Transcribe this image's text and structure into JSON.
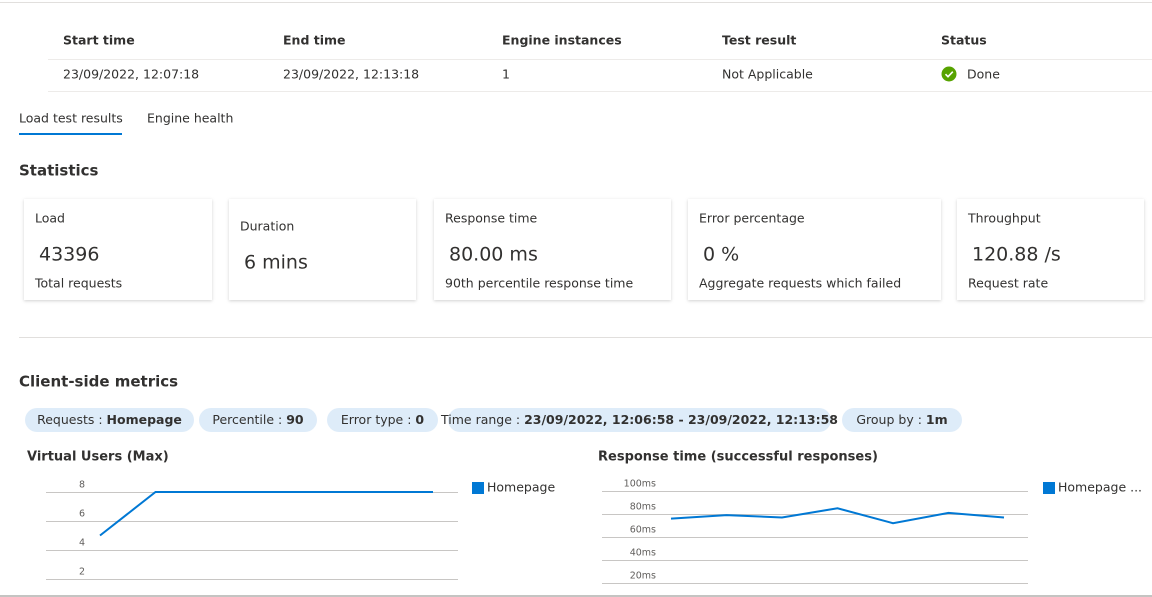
{
  "table": {
    "headers": [
      "Start time",
      "End time",
      "Engine instances",
      "Test result",
      "Status"
    ],
    "row": [
      "23/09/2022, 12:07:18",
      "23/09/2022, 12:13:18",
      "1",
      "Not Applicable",
      "Done"
    ]
  },
  "tabs": [
    "Load test results",
    "Engine health"
  ],
  "statistics": {
    "title": "Statistics",
    "cards": [
      {
        "title": "Load",
        "value": "43396",
        "caption": "Total requests"
      },
      {
        "title": "Duration",
        "value": "6 mins"
      },
      {
        "title": "Response time",
        "value": "80.00 ms",
        "caption": "90th percentile response time"
      },
      {
        "title": "Error percentage",
        "value": "0 %",
        "caption": "Aggregate requests which failed"
      },
      {
        "title": "Throughput",
        "value": "120.88 /s",
        "caption": "Request rate"
      }
    ]
  },
  "metrics": {
    "title": "Client-side metrics",
    "filters": [
      {
        "label": "Requests : ",
        "value": "Homepage"
      },
      {
        "label": "Percentile : ",
        "value": "90"
      },
      {
        "label": "Error type : ",
        "value": "0"
      },
      {
        "label": "Time range : ",
        "value": "23/09/2022, 12:06:58 - 23/09/2022, 12:13:58"
      },
      {
        "label": "Group by : ",
        "value": "1m"
      }
    ]
  },
  "chart_data": [
    {
      "type": "line",
      "title": "Virtual Users (Max)",
      "categories": [
        null,
        null,
        null,
        null,
        null,
        null,
        null
      ],
      "series": [
        {
          "name": "Homepage",
          "color": "#0078d4",
          "values": [
            5,
            8,
            8,
            8,
            8,
            8,
            8
          ]
        }
      ],
      "ylim": [
        2,
        8
      ],
      "yticks": [
        2,
        4,
        6,
        8
      ],
      "grid": true,
      "legend": "right"
    },
    {
      "type": "line",
      "title": "Response time (successful responses)",
      "categories": [
        null,
        null,
        null,
        null,
        null,
        null,
        null
      ],
      "series": [
        {
          "name": "Homepage ...",
          "color": "#0078d4",
          "values": [
            76,
            79,
            77,
            85,
            72,
            81,
            77
          ]
        }
      ],
      "ylim": [
        20,
        100
      ],
      "yticks": [
        {
          "value": 20,
          "label": "20ms"
        },
        {
          "value": 40,
          "label": "40ms"
        },
        {
          "value": 60,
          "label": "60ms"
        },
        {
          "value": 80,
          "label": "80ms"
        },
        {
          "value": 100,
          "label": "100ms"
        }
      ],
      "grid": true,
      "legend": "right"
    }
  ]
}
